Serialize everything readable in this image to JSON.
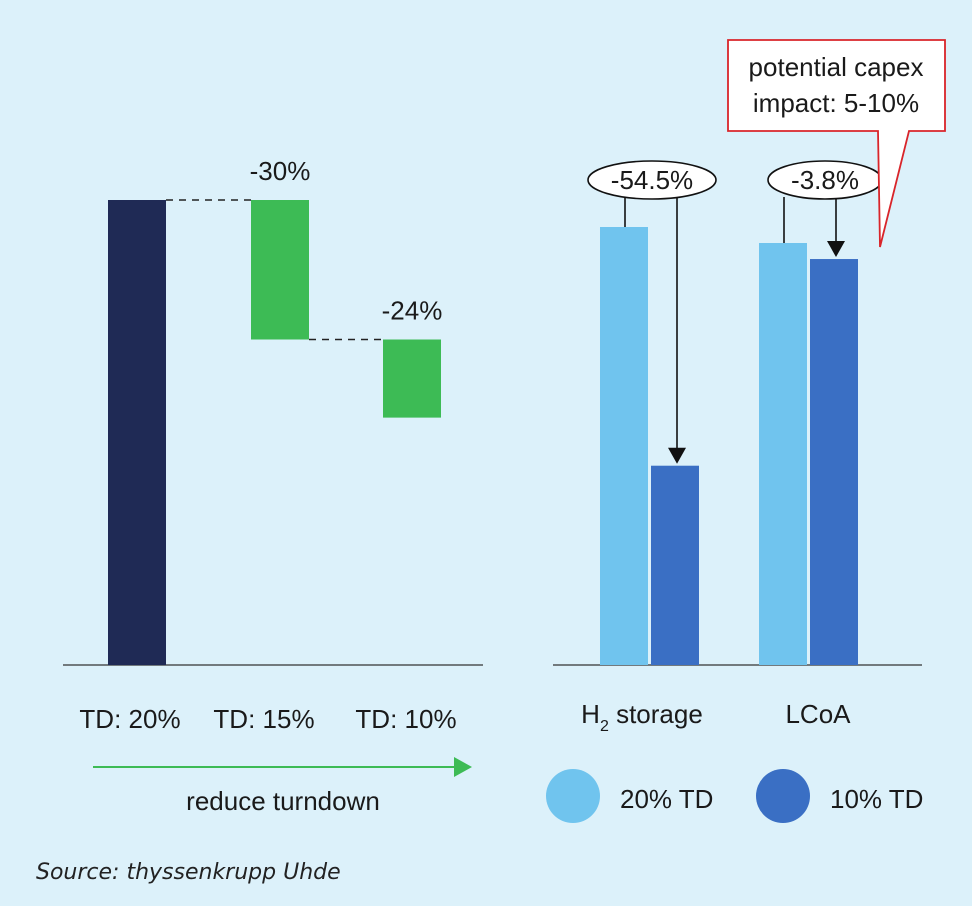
{
  "colors": {
    "background": "#dcf1fa",
    "baseline_bar": "#1f2a55",
    "reduction_bar": "#3dbb55",
    "series_20": "#70c4ee",
    "series_10": "#3a6fc4",
    "callout_border": "#d9252a",
    "arrow_green": "#3dbb55"
  },
  "chart_data": [
    {
      "type": "bar",
      "variant": "waterfall",
      "categories": [
        "TD: 20%",
        "TD: 15%",
        "TD: 10%"
      ],
      "values": [
        100,
        -30,
        -24
      ],
      "data_labels": [
        "",
        "-30%",
        "-24%"
      ],
      "ylim": [
        0,
        105
      ],
      "arrow_label": "reduce turndown"
    },
    {
      "type": "bar",
      "categories": [
        "H",
        "LCoA"
      ],
      "category_subscripts": [
        "2",
        ""
      ],
      "category_suffixes": [
        " storage",
        ""
      ],
      "series": [
        {
          "name": "20% TD",
          "values": [
            100,
            100
          ]
        },
        {
          "name": "10% TD",
          "values": [
            45.5,
            96.2
          ]
        }
      ],
      "change_labels": [
        "-54.5%",
        "-3.8%"
      ],
      "ylim": [
        0,
        105
      ],
      "legend": "bottom",
      "callout": [
        "potential capex",
        "impact: 5-10%"
      ]
    }
  ],
  "source": "Source: thyssenkrupp Uhde"
}
